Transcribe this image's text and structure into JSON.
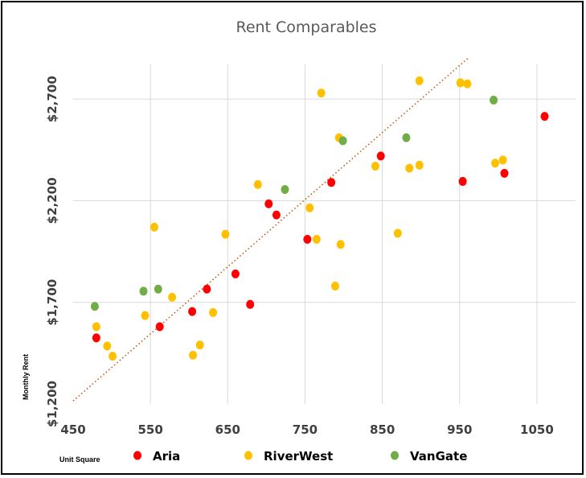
{
  "chart_data": {
    "type": "scatter",
    "title": "Rent Comparables",
    "xlabel": "Unit Square",
    "ylabel": "Monthly Rent",
    "xlim": [
      450,
      1100
    ],
    "ylim": [
      1200,
      2950
    ],
    "x_ticks": [
      450,
      550,
      650,
      750,
      850,
      950,
      1050
    ],
    "x_tick_labels": [
      "450",
      "550",
      "650",
      "750",
      "850",
      "950",
      "1050"
    ],
    "y_ticks": [
      1200,
      1700,
      2200,
      2700
    ],
    "y_tick_labels": [
      "$1,200",
      "$1,700",
      "$2,200",
      "$2,700"
    ],
    "grid": true,
    "legend_position": "bottom",
    "trendline": {
      "style": "dotted",
      "color": "#C55A11",
      "x": [
        450,
        962
      ],
      "y": [
        1215,
        2905
      ]
    },
    "series": [
      {
        "name": "Aria",
        "color": "#FF0000",
        "x": [
          480,
          562,
          604,
          623,
          660,
          679,
          703,
          713,
          753,
          784,
          848,
          954,
          1008,
          1060
        ],
        "y": [
          1525,
          1580,
          1655,
          1765,
          1840,
          1690,
          2185,
          2130,
          2010,
          2290,
          2420,
          2295,
          2335,
          2615
        ]
      },
      {
        "name": "RiverWest",
        "color": "#FFC000",
        "x": [
          480,
          494,
          501,
          543,
          555,
          578,
          605,
          614,
          631,
          647,
          689,
          756,
          765,
          771,
          789,
          794,
          796,
          841,
          870,
          885,
          898,
          898,
          951,
          960,
          996,
          1006
        ],
        "y": [
          1580,
          1485,
          1435,
          1635,
          2070,
          1725,
          1440,
          1490,
          1650,
          2035,
          2280,
          2165,
          2010,
          2730,
          1780,
          2510,
          1985,
          2370,
          2040,
          2360,
          2375,
          2790,
          2780,
          2775,
          2385,
          2400
        ]
      },
      {
        "name": "VanGate",
        "color": "#70AD47",
        "x": [
          478,
          541,
          560,
          724,
          799,
          881,
          994
        ],
        "y": [
          1680,
          1755,
          1765,
          2255,
          2495,
          2510,
          2695
        ]
      }
    ]
  }
}
